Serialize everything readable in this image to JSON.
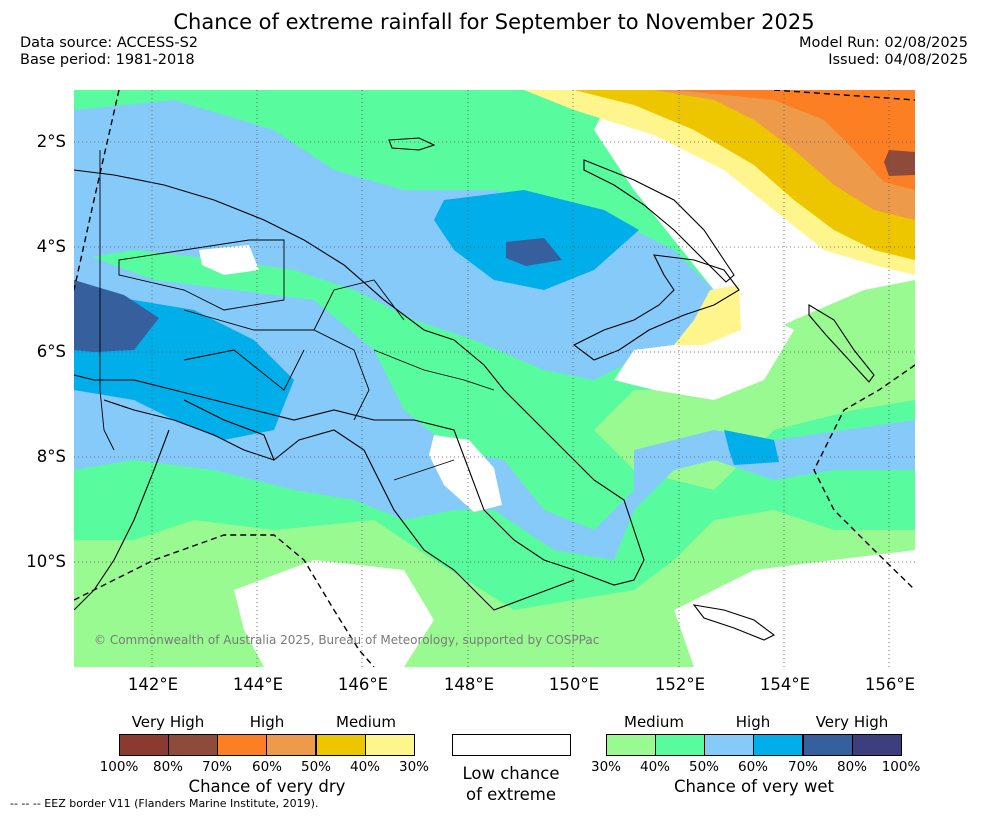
{
  "title": "Chance of extreme rainfall for September to November 2025",
  "meta": {
    "data_source": "Data source: ACCESS-S2",
    "base_period": "Base period: 1981-2018",
    "model_run": "Model Run: 02/08/2025",
    "issued": "Issued: 04/08/2025"
  },
  "map": {
    "lat_ticks": [
      "2°S",
      "4°S",
      "6°S",
      "8°S",
      "10°S"
    ],
    "lon_ticks": [
      "142°E",
      "144°E",
      "146°E",
      "148°E",
      "150°E",
      "152°E",
      "154°E",
      "156°E"
    ],
    "copyright": "© Commonwealth of Australia 2025, Bureau of Meteorology, supported by COSPPac",
    "colors": {
      "dry_very_high_100_80": "#8b3a2f",
      "dry_very_high_80_70": "#8e4a3a",
      "dry_high_70_60": "#fd7f23",
      "dry_high_60_50": "#ed9a4a",
      "dry_medium_50_40": "#eec600",
      "dry_medium_40_30": "#fef58c",
      "low_chance": "#ffffff",
      "wet_medium_30_40": "#98fa90",
      "wet_medium_40_50": "#58fc9e",
      "wet_high_50_60": "#86cafa",
      "wet_high_60_70": "#00aeea",
      "wet_very_high_70_80": "#35609d",
      "wet_very_high_80_100": "#3c3e7d"
    }
  },
  "legend": {
    "dry": {
      "headers": [
        "Very High",
        "High",
        "Medium"
      ],
      "percents": [
        "100%",
        "80%",
        "70%",
        "60%",
        "50%",
        "40%",
        "30%"
      ],
      "caption": "Chance of very dry"
    },
    "low": {
      "caption_line1": "Low chance",
      "caption_line2": "of extreme"
    },
    "wet": {
      "headers": [
        "Medium",
        "High",
        "Very High"
      ],
      "percents": [
        "30%",
        "40%",
        "50%",
        "60%",
        "70%",
        "80%",
        "100%"
      ],
      "caption": "Chance of very wet"
    }
  },
  "footnote": "--  --  -- EEZ border V11 (Flanders Marine Institute, 2019)."
}
